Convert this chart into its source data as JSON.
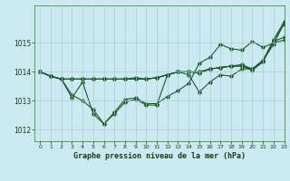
{
  "title": "Graphe pression niveau de la mer (hPa)",
  "bg_color": "#cce8f0",
  "grid_color": "#aaccdd",
  "line_color": "#1a5c28",
  "xlim": [
    -0.5,
    23
  ],
  "ylim": [
    1011.6,
    1016.3
  ],
  "yticks": [
    1012,
    1013,
    1014,
    1015
  ],
  "xticks": [
    0,
    1,
    2,
    3,
    4,
    5,
    6,
    7,
    8,
    9,
    10,
    11,
    12,
    13,
    14,
    15,
    16,
    17,
    18,
    19,
    20,
    21,
    22,
    23
  ],
  "series": [
    [
      1014.0,
      1013.85,
      1013.75,
      1013.75,
      1013.75,
      1013.75,
      1013.75,
      1013.75,
      1013.75,
      1013.75,
      1013.75,
      1013.8,
      1013.9,
      1014.0,
      1014.0,
      1014.0,
      1014.1,
      1014.15,
      1014.2,
      1014.2,
      1014.05,
      1014.35,
      1015.05,
      1015.2
    ],
    [
      1014.0,
      1013.85,
      1013.75,
      1013.75,
      1013.75,
      1013.75,
      1013.75,
      1013.75,
      1013.75,
      1013.75,
      1013.75,
      1013.8,
      1013.9,
      1014.0,
      1014.0,
      1014.0,
      1014.1,
      1014.15,
      1014.2,
      1014.2,
      1014.1,
      1014.4,
      1015.1,
      1015.65
    ],
    [
      1014.0,
      1013.85,
      1013.75,
      1013.75,
      1013.75,
      1013.75,
      1013.75,
      1013.75,
      1013.75,
      1013.8,
      1013.75,
      1013.8,
      1013.9,
      1014.0,
      1014.0,
      1013.95,
      1014.1,
      1014.15,
      1014.2,
      1014.25,
      1014.1,
      1014.4,
      1014.95,
      1015.7
    ],
    [
      1014.0,
      1013.85,
      1013.75,
      1013.2,
      1013.0,
      1012.7,
      1012.2,
      1012.6,
      1013.05,
      1013.1,
      1012.9,
      1012.9,
      1013.15,
      1013.35,
      1013.6,
      1014.3,
      1014.5,
      1014.95,
      1014.8,
      1014.75,
      1015.05,
      1014.85,
      1015.0,
      1015.1
    ],
    [
      1014.0,
      1013.85,
      1013.75,
      1013.1,
      1013.65,
      1012.55,
      1012.2,
      1012.55,
      1012.95,
      1013.05,
      1012.85,
      1012.85,
      1013.9,
      1014.0,
      1013.9,
      1013.3,
      1013.65,
      1013.9,
      1013.85,
      1014.1,
      1014.1,
      1014.35,
      1015.1,
      1015.75
    ]
  ]
}
